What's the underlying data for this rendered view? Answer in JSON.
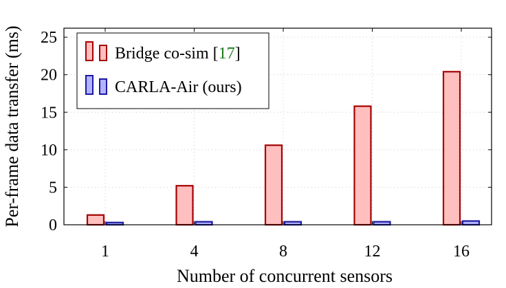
{
  "chart_data": {
    "type": "bar",
    "title": "",
    "xlabel": "Number of concurrent sensors",
    "ylabel": "Per-frame data transfer (ms)",
    "categories": [
      "1",
      "4",
      "8",
      "12",
      "16"
    ],
    "yticks": [
      0,
      5,
      10,
      15,
      20,
      25
    ],
    "ylim": [
      0,
      26.2
    ],
    "grid": true,
    "legend_position": "top-left",
    "series": [
      {
        "name": "Bridge co-sim",
        "citation": "[17]",
        "citation_color": "#1a7a1a",
        "fill": "#ffbfbf",
        "stroke": "#a50000",
        "values": [
          1.3,
          5.2,
          10.6,
          15.8,
          20.4
        ]
      },
      {
        "name": "CARLA-Air (ours)",
        "fill": "#b3b3ff",
        "stroke": "#1a1aa0",
        "values": [
          0.3,
          0.4,
          0.4,
          0.4,
          0.5
        ]
      }
    ]
  }
}
